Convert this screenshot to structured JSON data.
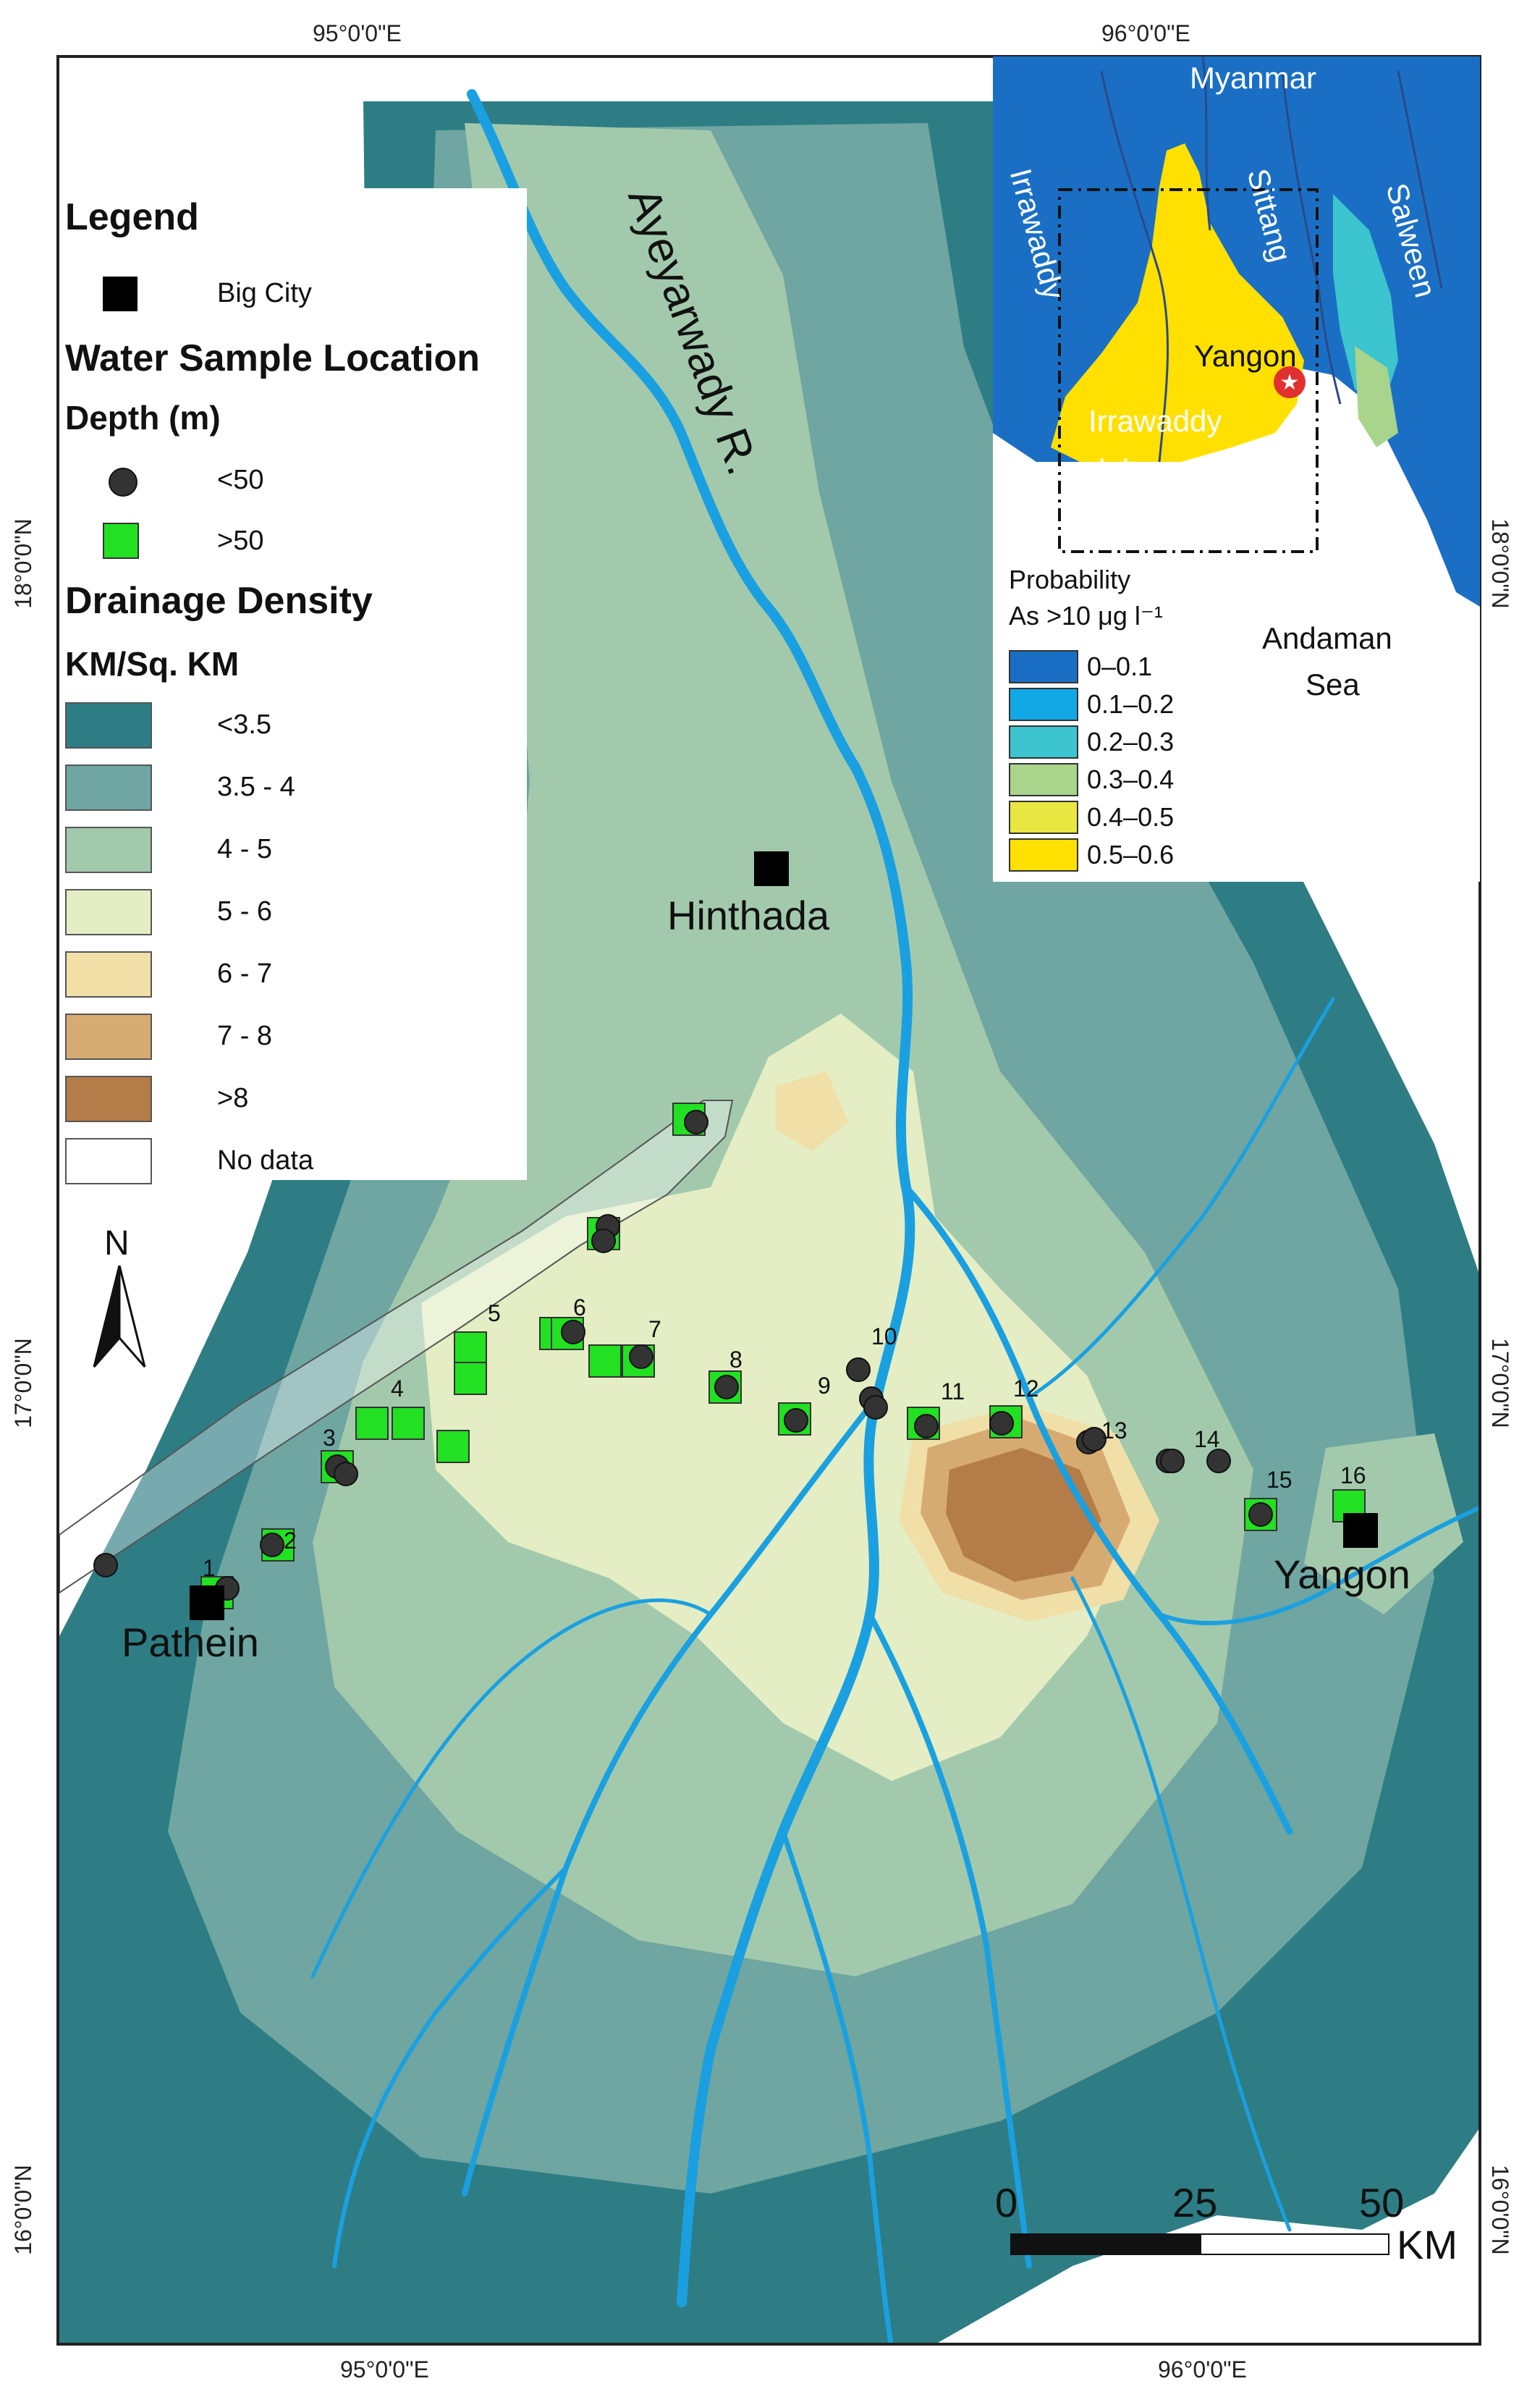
{
  "coords": {
    "top_left": "95°0'0\"E",
    "top_right": "96°0'0\"E",
    "bottom_left": "95°0'0\"E",
    "bottom_right": "96°0'0\"E",
    "left_upper": "18°0'0\"N",
    "left_middle": "17°0'0\"N",
    "left_lower": "16°0'0\"N",
    "right_upper": "18°0'0\"N",
    "right_middle": "17°0'0\"N",
    "right_lower": "16°0'0\"N"
  },
  "legend": {
    "title": "Legend",
    "big_city": "Big City",
    "water_sample": "Water Sample Location",
    "depth_title": "Depth (m)",
    "depth_shallow": "<50",
    "depth_deep": ">50",
    "drainage_title": "Drainage Density",
    "drainage_units": "KM/Sq. KM",
    "classes": [
      {
        "label": "<3.5",
        "color": "#2e7d84"
      },
      {
        "label": "3.5 - 4",
        "color": "#6fa6a1"
      },
      {
        "label": "4 - 5",
        "color": "#a3c9ac"
      },
      {
        "label": "5 - 6",
        "color": "#e4edc3"
      },
      {
        "label": "6 - 7",
        "color": "#f1dfa8"
      },
      {
        "label": "7 - 8",
        "color": "#d6ab72"
      },
      {
        "label": ">8",
        "color": "#b47c48"
      },
      {
        "label": "No data",
        "color": "#ffffff"
      }
    ]
  },
  "map": {
    "river_label": "Ayeyarwady R.",
    "north_label": "N",
    "cities": [
      "Hinthada",
      "Pathein",
      "Yangon"
    ],
    "site_numbers": [
      "1",
      "2",
      "3",
      "4",
      "5",
      "6",
      "7",
      "8",
      "9",
      "10",
      "11",
      "12",
      "13",
      "14",
      "15",
      "16"
    ],
    "scale": {
      "zero": "0",
      "mid": "25",
      "end": "50",
      "unit": "KM"
    }
  },
  "inset": {
    "myanmar": "Myanmar",
    "irrawaddy": "Irrawaddy",
    "sittang": "Sittang",
    "salween": "Salween",
    "yangon": "Yangon",
    "delta_line1": "Irrawaddy",
    "delta_line2": "delta",
    "andaman1": "Andaman",
    "andaman2": "Sea",
    "prob_title1": "Probability",
    "prob_title2": "As >10 μg l⁻¹",
    "prob_classes": [
      {
        "label": "0–0.1",
        "color": "#1a6fc4"
      },
      {
        "label": "0.1–0.2",
        "color": "#12a8e6"
      },
      {
        "label": "0.2–0.3",
        "color": "#3cc4cf"
      },
      {
        "label": "0.3–0.4",
        "color": "#a9d48b"
      },
      {
        "label": "0.4–0.5",
        "color": "#e8e640"
      },
      {
        "label": "0.5–0.6",
        "color": "#ffe000"
      }
    ]
  }
}
